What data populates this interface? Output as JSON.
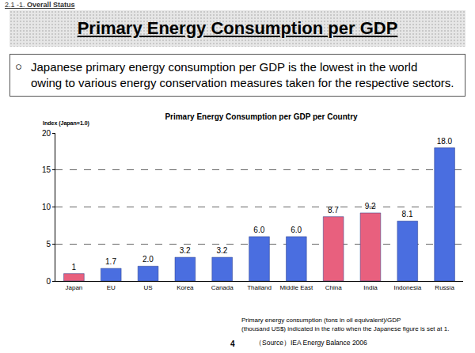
{
  "slide": {
    "section": "2.1 -1.",
    "section_title": "Overall Status",
    "title": "Primary Energy Consumption per GDP",
    "bullet": "○",
    "bullet_lines": [
      "Japanese primary energy consumption per GDP is the lowest in the world",
      "owing to various energy conservation measures taken for the respective sectors."
    ],
    "footnote_lines": [
      "Primary energy consumption (tons in oil equivalent)/GDP",
      "(thousand US$) indicated in the ratio when the Japanese figure is set at 1."
    ],
    "source": "（Source）IEA Energy Balance 2006",
    "page": "4"
  },
  "chart_data": {
    "type": "bar",
    "title": "Primary Energy Consumption per GDP per Country",
    "ylabel": "Index (Japan=1.0)",
    "categories": [
      "Japan",
      "EU",
      "US",
      "Korea",
      "Canada",
      "Thailand",
      "Middle East",
      "China",
      "India",
      "Indonesia",
      "Russia"
    ],
    "values": [
      1,
      1.7,
      2.0,
      3.2,
      3.2,
      6.0,
      6.0,
      8.7,
      9.2,
      8.1,
      18.0
    ],
    "value_labels": [
      "1",
      "1.7",
      "2.0",
      "3.2",
      "3.2",
      "6.0",
      "6.0",
      "8.7",
      "9.2",
      "8.1",
      "18.0"
    ],
    "colors": [
      "#e8607e",
      "#4a6ee0",
      "#4a6ee0",
      "#4a6ee0",
      "#4a6ee0",
      "#4a6ee0",
      "#4a6ee0",
      "#e8607e",
      "#e8607e",
      "#4a6ee0",
      "#4a6ee0"
    ],
    "ylim": [
      0,
      20
    ],
    "yticks": [
      0,
      5,
      10,
      15,
      20
    ],
    "grid": true,
    "data_labels": true
  }
}
